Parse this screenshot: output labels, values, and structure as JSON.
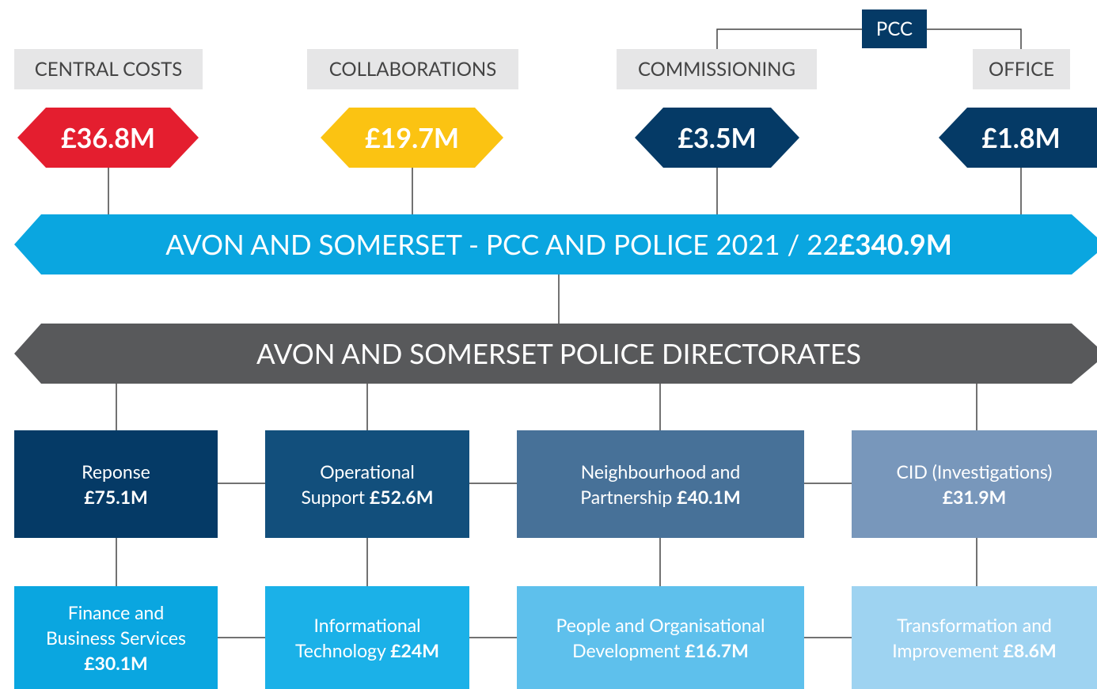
{
  "pcc": "PCC",
  "top": [
    {
      "label": "CENTRAL COSTS",
      "amount": "£36.8M"
    },
    {
      "label": "COLLABORATIONS",
      "amount": "£19.7M"
    },
    {
      "label": "COMMISSIONING",
      "amount": "£3.5M"
    },
    {
      "label": "OFFICE",
      "amount": "£1.8M"
    }
  ],
  "main": {
    "title": "AVON AND SOMERSET - PCC AND POLICE 2021 / 22",
    "amount": "£340.9M"
  },
  "directorates": {
    "title": "AVON AND SOMERSET POLICE DIRECTORATES"
  },
  "boxes": [
    [
      {
        "lines": [
          "Reponse"
        ],
        "amount": "£75.1M"
      },
      {
        "lines": [
          "Operational",
          "Support"
        ],
        "amount": "£52.6M"
      },
      {
        "lines": [
          "Neighbourhood and",
          "Partnership"
        ],
        "amount": "£40.1M"
      },
      {
        "lines": [
          "CID (Investigations)"
        ],
        "amount": "£31.9M"
      }
    ],
    [
      {
        "lines": [
          "Finance and",
          "Business Services"
        ],
        "amount": "£30.1M"
      },
      {
        "lines": [
          "Informational",
          "Technology"
        ],
        "amount": "£24M"
      },
      {
        "lines": [
          "People and Organisational",
          "Development"
        ],
        "amount": "£16.7M"
      },
      {
        "lines": [
          "Transformation and",
          "Improvement"
        ],
        "amount": "£8.6M"
      }
    ]
  ]
}
